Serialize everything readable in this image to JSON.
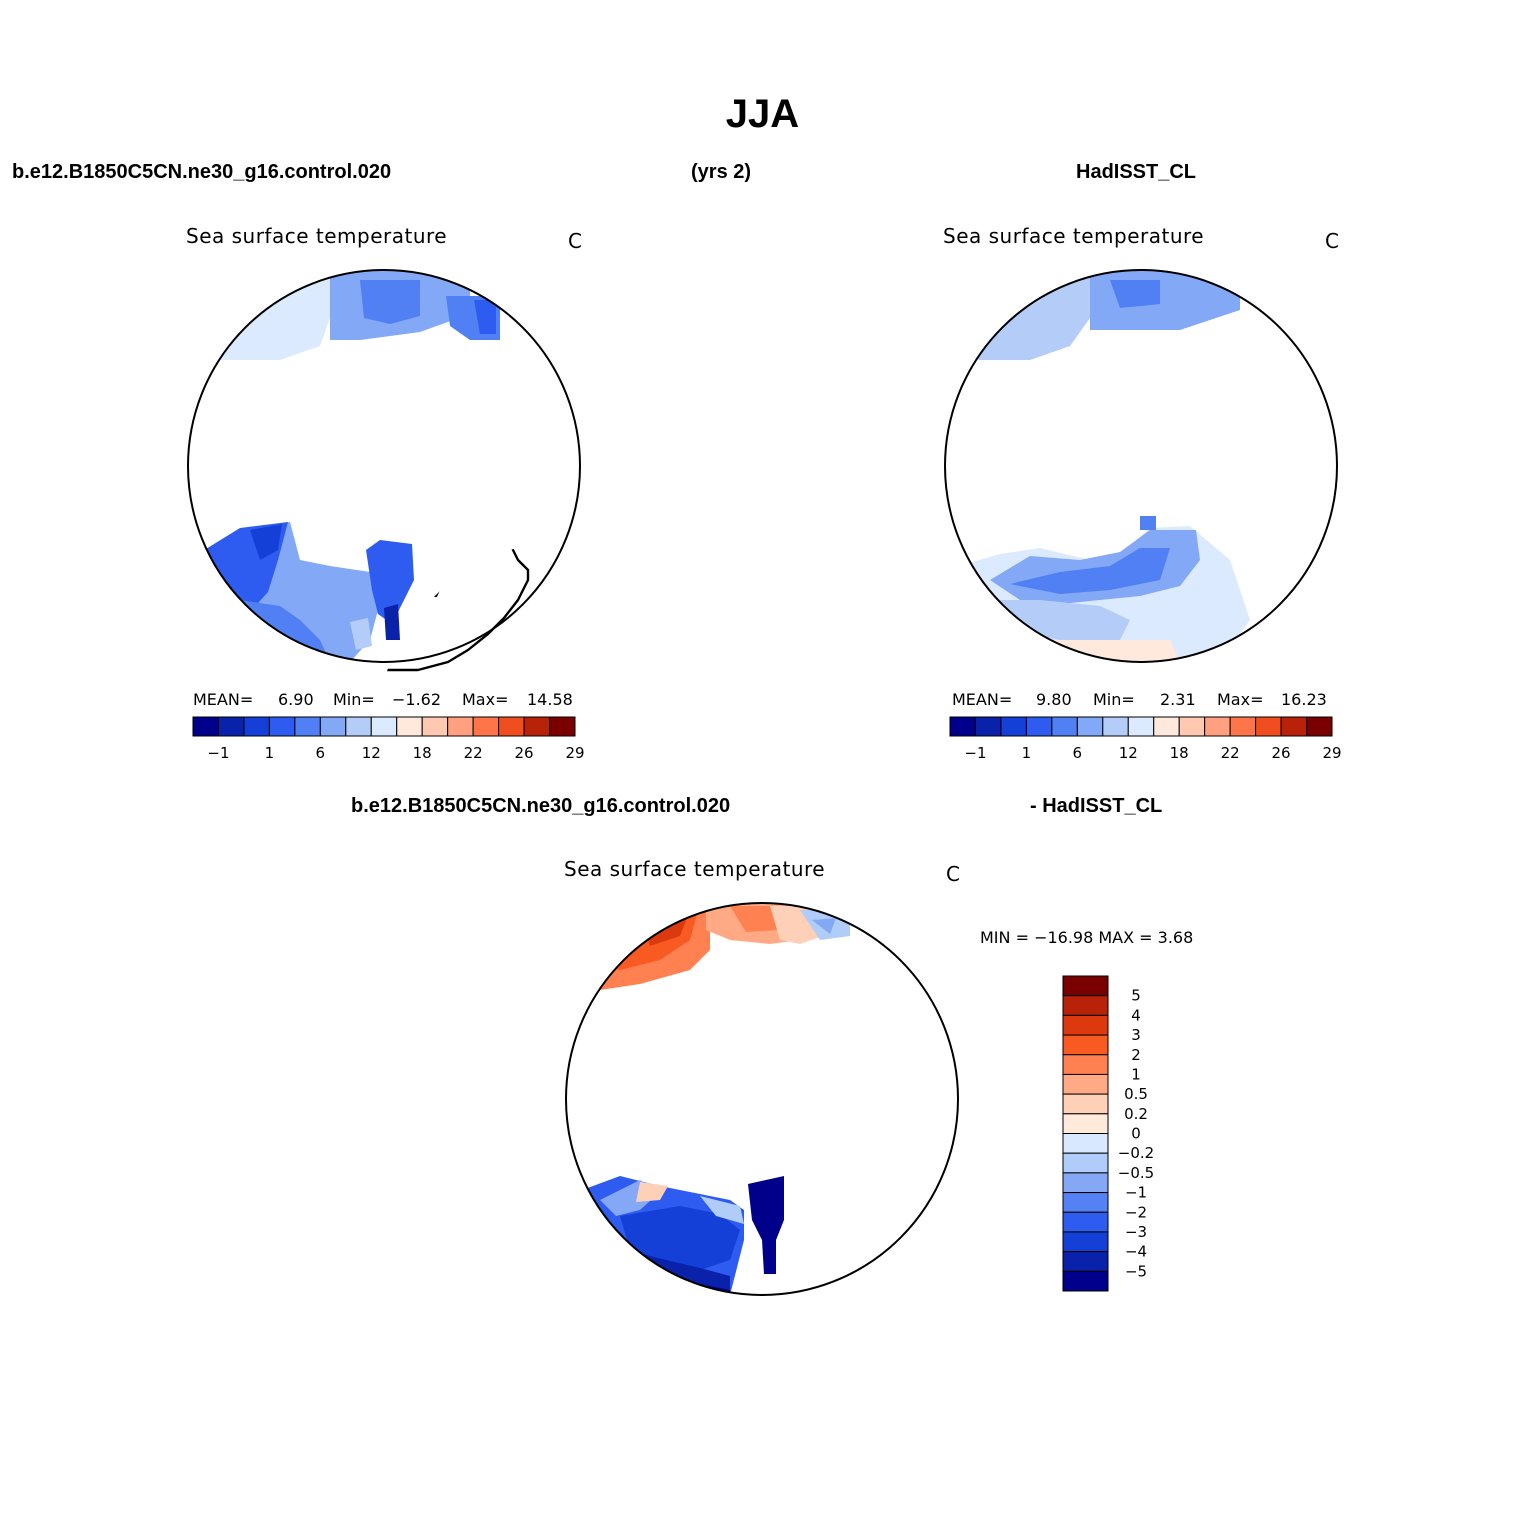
{
  "figure": {
    "title": "JJA",
    "case_name": "b.e12.B1850C5CN.ne30_g16.control.020",
    "years": "(yrs 2)",
    "obs_name": "HadISST_CL",
    "diff_case": "b.e12.B1850C5CN.ne30_g16.control.020",
    "diff_obs": "- HadISST_CL"
  },
  "panels": {
    "model": {
      "title": "Sea surface temperature",
      "units": "C",
      "mean_label": "MEAN=",
      "mean_value": "6.90",
      "min_label": "Min=",
      "min_value": "−1.62",
      "max_label": "Max=",
      "max_value": "14.58"
    },
    "obs": {
      "title": "Sea surface temperature",
      "units": "C",
      "mean_label": "MEAN=",
      "mean_value": "9.80",
      "min_label": "Min=",
      "min_value": "2.31",
      "max_label": "Max=",
      "max_value": "16.23"
    },
    "diff": {
      "title": "Sea surface temperature",
      "units": "C",
      "minmax_text": "MIN = −16.98 MAX =    3.68"
    }
  },
  "colorbars": {
    "abs": {
      "colors": [
        "#00008b",
        "#0a22aa",
        "#1440d8",
        "#2e5cf0",
        "#5080f4",
        "#82a8f6",
        "#b4ccf8",
        "#dceaff",
        "#ffe8dc",
        "#ffc8b0",
        "#ffa080",
        "#ff7448",
        "#f04e1e",
        "#b82208",
        "#7a0000"
      ],
      "labels": [
        "−1",
        "1",
        "6",
        "12",
        "18",
        "22",
        "26",
        "29"
      ]
    },
    "diff": {
      "colors": [
        "#7a0000",
        "#b82208",
        "#dc3a0e",
        "#f85a22",
        "#ff8050",
        "#ffaa84",
        "#ffd0b8",
        "#ffeadc",
        "#d8e8ff",
        "#b0ccf8",
        "#84a8f6",
        "#5482f4",
        "#2e5cf0",
        "#1440d8",
        "#0a22aa",
        "#00008b"
      ],
      "labels": [
        "5",
        "4",
        "3",
        "2",
        "1",
        "0.5",
        "0.2",
        "0",
        "−0.2",
        "−0.5",
        "−1",
        "−2",
        "−3",
        "−4",
        "−5"
      ]
    }
  }
}
